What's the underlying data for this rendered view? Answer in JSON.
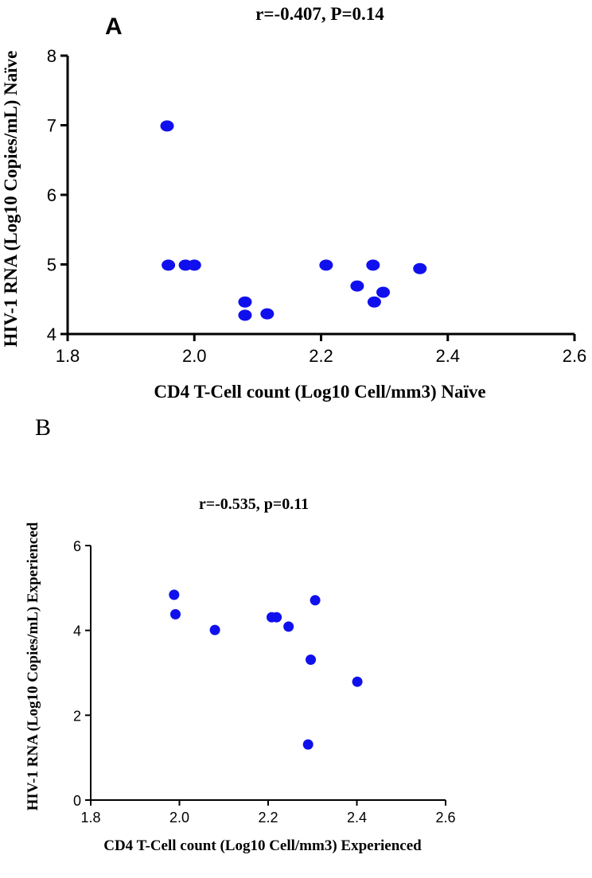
{
  "colors": {
    "point": "#1010ee",
    "axis": "#000000",
    "background": "#ffffff"
  },
  "chart_data": [
    {
      "panel": "A",
      "type": "scatter",
      "title": "r=-0.407, P=0.14",
      "xlabel": "CD4 T-Cell count (Log10 Cell/mm3) Naïve",
      "ylabel": "HIV-1 RNA (Log10 Copies/mL) Naïve",
      "xlim": [
        1.8,
        2.6
      ],
      "ylim": [
        4,
        8
      ],
      "xticks": [
        1.8,
        2.0,
        2.2,
        2.4,
        2.6
      ],
      "xtick_labels": [
        "1.8",
        "2.0",
        "2.2",
        "2.4",
        "2.6"
      ],
      "yticks": [
        4,
        5,
        6,
        7,
        8
      ],
      "ytick_labels": [
        "4",
        "5",
        "6",
        "7",
        "8"
      ],
      "points": [
        {
          "x": 1.957,
          "y": 6.99
        },
        {
          "x": 1.959,
          "y": 4.99
        },
        {
          "x": 1.986,
          "y": 4.99
        },
        {
          "x": 2.0,
          "y": 4.99
        },
        {
          "x": 2.08,
          "y": 4.46
        },
        {
          "x": 2.08,
          "y": 4.27
        },
        {
          "x": 2.115,
          "y": 4.29
        },
        {
          "x": 2.208,
          "y": 4.99
        },
        {
          "x": 2.257,
          "y": 4.69
        },
        {
          "x": 2.282,
          "y": 4.99
        },
        {
          "x": 2.284,
          "y": 4.46
        },
        {
          "x": 2.298,
          "y": 4.6
        },
        {
          "x": 2.356,
          "y": 4.94
        }
      ]
    },
    {
      "panel": "B",
      "type": "scatter",
      "title": "r=-0.535, p=0.11",
      "xlabel": "CD4 T-Cell count (Log10 Cell/mm3) Experienced",
      "ylabel": "HIV-1 RNA (Log10 Copies/mL) Experienced",
      "xlim": [
        1.8,
        2.6
      ],
      "ylim": [
        0,
        6
      ],
      "xticks": [
        1.8,
        2.0,
        2.2,
        2.4,
        2.6
      ],
      "xtick_labels": [
        "1.8",
        "2.0",
        "2.2",
        "2.4",
        "2.6"
      ],
      "yticks": [
        0,
        2,
        4,
        6
      ],
      "ytick_labels": [
        "0",
        "2",
        "4",
        "6"
      ],
      "points": [
        {
          "x": 1.988,
          "y": 4.84
        },
        {
          "x": 1.991,
          "y": 4.38
        },
        {
          "x": 2.08,
          "y": 4.01
        },
        {
          "x": 2.208,
          "y": 4.31
        },
        {
          "x": 2.219,
          "y": 4.31
        },
        {
          "x": 2.246,
          "y": 4.09
        },
        {
          "x": 2.29,
          "y": 1.31
        },
        {
          "x": 2.296,
          "y": 3.31
        },
        {
          "x": 2.306,
          "y": 4.71
        },
        {
          "x": 2.401,
          "y": 2.79
        }
      ]
    }
  ]
}
